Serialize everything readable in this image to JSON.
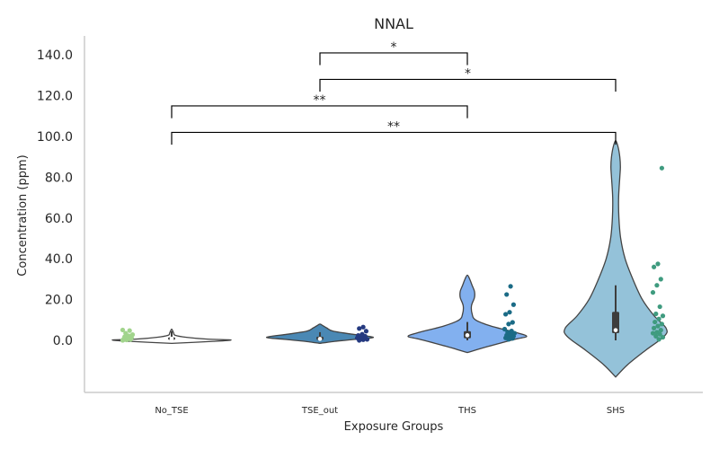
{
  "chart_data": {
    "type": "violin",
    "title": "NNAL",
    "xlabel": "Exposure Groups",
    "ylabel": "Concentration (ppm)",
    "ylim": [
      -25,
      150
    ],
    "yticks": [
      0,
      20,
      40,
      60,
      80,
      100,
      120,
      140
    ],
    "ytick_labels": [
      "0.0",
      "20.0",
      "40.0",
      "60.0",
      "80.0",
      "100.0",
      "120.0",
      "140.0"
    ],
    "categories": [
      "No_TSE",
      "TSE_out",
      "THS",
      "SHS"
    ],
    "groups": [
      {
        "name": "No_TSE",
        "violin_color": "#ffffff",
        "point_color": "#a1d48c",
        "q1": 0.3,
        "median": 0.8,
        "q3": 1.5,
        "whisker_low": 0.0,
        "whisker_high": 4.5,
        "profile": [
          [
            -1.5,
            0.0
          ],
          [
            -0.5,
            0.7
          ],
          [
            0.2,
            1.0
          ],
          [
            0.6,
            0.6
          ],
          [
            1.5,
            0.25
          ],
          [
            2.5,
            0.06
          ],
          [
            3.5,
            0.035
          ],
          [
            4.5,
            0.02
          ],
          [
            5.5,
            0.0
          ]
        ],
        "points": [
          0.0,
          0.2,
          0.4,
          0.6,
          1.0,
          1.3,
          1.8,
          2.2,
          2.8,
          3.5,
          4.8,
          5.1
        ]
      },
      {
        "name": "TSE_out",
        "violin_color": "#4a88b4",
        "point_color": "#253a80",
        "q1": 0.2,
        "median": 0.7,
        "q3": 1.8,
        "whisker_low": 0.0,
        "whisker_high": 4.0,
        "profile": [
          [
            -1.5,
            0.0
          ],
          [
            -0.5,
            0.25
          ],
          [
            0.5,
            0.6
          ],
          [
            1.5,
            0.9
          ],
          [
            3.0,
            0.55
          ],
          [
            4.5,
            0.22
          ],
          [
            6.0,
            0.12
          ],
          [
            7.2,
            0.05
          ],
          [
            8.0,
            0.0
          ]
        ],
        "points": [
          0.0,
          0.3,
          0.5,
          0.8,
          1.0,
          1.2,
          1.6,
          2.0,
          2.4,
          3.0,
          4.5,
          5.8,
          6.5
        ]
      },
      {
        "name": "THS",
        "violin_color": "#82b0ef",
        "point_color": "#1b6b86",
        "q1": 1.0,
        "median": 2.5,
        "q3": 4.5,
        "whisker_low": 0.0,
        "whisker_high": 9.0,
        "profile": [
          [
            -6.0,
            0.0
          ],
          [
            -3.0,
            0.35
          ],
          [
            0.5,
            0.8
          ],
          [
            2.0,
            1.0
          ],
          [
            4.0,
            0.8
          ],
          [
            7.0,
            0.4
          ],
          [
            10.0,
            0.14
          ],
          [
            13.0,
            0.08
          ],
          [
            17.0,
            0.07
          ],
          [
            21.0,
            0.12
          ],
          [
            24.0,
            0.12
          ],
          [
            27.0,
            0.08
          ],
          [
            30.0,
            0.04
          ],
          [
            32.0,
            0.0
          ]
        ],
        "points": [
          0.5,
          1.0,
          1.2,
          1.6,
          2.0,
          2.5,
          3.0,
          3.5,
          4.0,
          4.6,
          5.5,
          8.0,
          8.8,
          12.8,
          13.8,
          17.5,
          22.5,
          26.5
        ]
      },
      {
        "name": "SHS",
        "violin_color": "#94c2d9",
        "point_color": "#3f9b7f",
        "q1": 3.5,
        "median": 5.0,
        "q3": 14.0,
        "whisker_low": 0.0,
        "whisker_high": 27.0,
        "profile": [
          [
            -18.0,
            0.0
          ],
          [
            -12.0,
            0.2
          ],
          [
            -5.0,
            0.5
          ],
          [
            2.0,
            0.82
          ],
          [
            6.0,
            0.85
          ],
          [
            12.0,
            0.65
          ],
          [
            20.0,
            0.45
          ],
          [
            30.0,
            0.29
          ],
          [
            40.0,
            0.16
          ],
          [
            50.0,
            0.085
          ],
          [
            60.0,
            0.055
          ],
          [
            70.0,
            0.05
          ],
          [
            80.0,
            0.07
          ],
          [
            85.0,
            0.08
          ],
          [
            90.0,
            0.07
          ],
          [
            95.0,
            0.04
          ],
          [
            98.0,
            0.0
          ]
        ],
        "points": [
          0.5,
          1.5,
          2.0,
          3.0,
          3.5,
          4.0,
          5.0,
          6.0,
          7.0,
          8.0,
          9.0,
          10.5,
          12.0,
          13.0,
          16.5,
          23.5,
          27.0,
          30.0,
          36.0,
          37.5,
          84.5
        ]
      }
    ],
    "annotations": [
      {
        "from": "TSE_out",
        "to": "THS",
        "label": "*",
        "y": 141,
        "drop": 6
      },
      {
        "from": "TSE_out",
        "to": "SHS",
        "label": "*",
        "y": 128,
        "drop": 6
      },
      {
        "from": "No_TSE",
        "to": "THS",
        "label": "**",
        "y": 115,
        "drop": 6
      },
      {
        "from": "No_TSE",
        "to": "SHS",
        "label": "**",
        "y": 102,
        "drop": 6
      }
    ]
  }
}
